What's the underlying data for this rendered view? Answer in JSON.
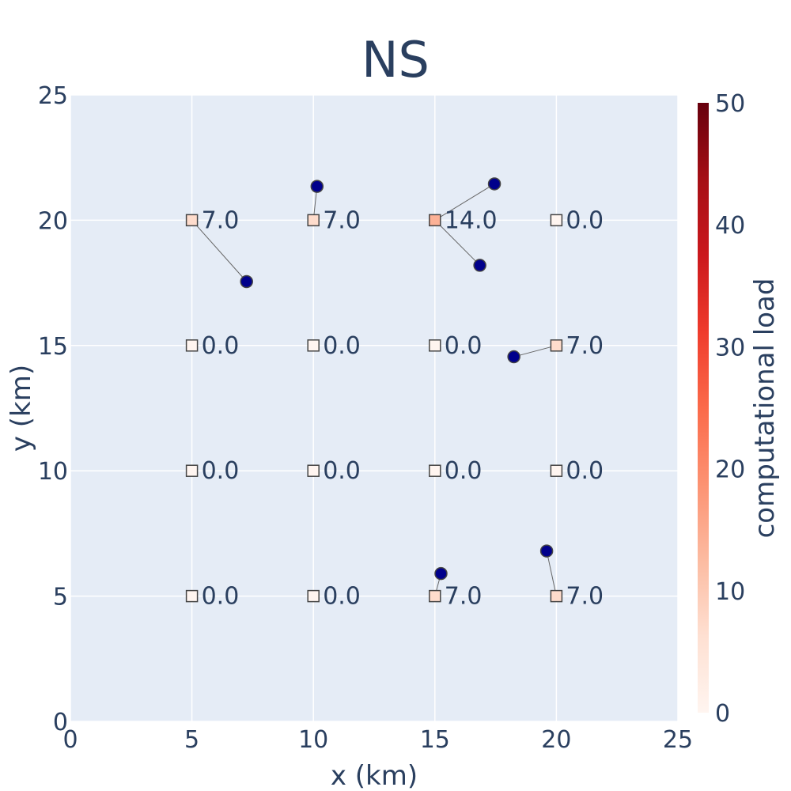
{
  "chart_data": {
    "type": "scatter",
    "title": "NS",
    "xlabel": "x (km)",
    "ylabel": "y (km)",
    "xlim": [
      0,
      25
    ],
    "ylim": [
      0,
      25
    ],
    "x_ticks": [
      "0",
      "5",
      "10",
      "15",
      "20",
      "25"
    ],
    "y_ticks": [
      "0",
      "5",
      "10",
      "15",
      "20",
      "25"
    ],
    "grid": true,
    "colorbar": {
      "label": "computational load",
      "range": [
        0,
        50
      ],
      "ticks": [
        "0",
        "10",
        "20",
        "30",
        "40",
        "50"
      ],
      "colors": [
        "#fff5f0",
        "#fee0d2",
        "#fcbba1",
        "#fc9272",
        "#fb6a4a",
        "#ef3b2c",
        "#cb181d",
        "#a50f15",
        "#67000d"
      ]
    },
    "servers": [
      {
        "x": 5,
        "y": 20,
        "load": 7.0,
        "label": "7.0"
      },
      {
        "x": 10,
        "y": 20,
        "load": 7.0,
        "label": "7.0"
      },
      {
        "x": 15,
        "y": 20,
        "load": 14.0,
        "label": "14.0"
      },
      {
        "x": 20,
        "y": 20,
        "load": 0.0,
        "label": "0.0"
      },
      {
        "x": 5,
        "y": 15,
        "load": 0.0,
        "label": "0.0"
      },
      {
        "x": 10,
        "y": 15,
        "load": 0.0,
        "label": "0.0"
      },
      {
        "x": 15,
        "y": 15,
        "load": 0.0,
        "label": "0.0"
      },
      {
        "x": 20,
        "y": 15,
        "load": 7.0,
        "label": "7.0"
      },
      {
        "x": 5,
        "y": 10,
        "load": 0.0,
        "label": "0.0"
      },
      {
        "x": 10,
        "y": 10,
        "load": 0.0,
        "label": "0.0"
      },
      {
        "x": 15,
        "y": 10,
        "load": 0.0,
        "label": "0.0"
      },
      {
        "x": 20,
        "y": 10,
        "load": 0.0,
        "label": "0.0"
      },
      {
        "x": 5,
        "y": 5,
        "load": 0.0,
        "label": "0.0"
      },
      {
        "x": 10,
        "y": 5,
        "load": 0.0,
        "label": "0.0"
      },
      {
        "x": 15,
        "y": 5,
        "load": 7.0,
        "label": "7.0"
      },
      {
        "x": 20,
        "y": 5,
        "load": 7.0,
        "label": "7.0"
      }
    ],
    "users": [
      {
        "x": 7.25,
        "y": 17.55,
        "server": [
          5,
          20
        ]
      },
      {
        "x": 10.15,
        "y": 21.35,
        "server": [
          10,
          20
        ]
      },
      {
        "x": 17.45,
        "y": 21.45,
        "server": [
          15,
          20
        ]
      },
      {
        "x": 16.85,
        "y": 18.2,
        "server": [
          15,
          20
        ]
      },
      {
        "x": 18.25,
        "y": 14.55,
        "server": [
          20,
          15
        ]
      },
      {
        "x": 15.25,
        "y": 5.9,
        "server": [
          15,
          5
        ]
      },
      {
        "x": 19.6,
        "y": 6.8,
        "server": [
          20,
          5
        ]
      }
    ],
    "user_color": "#00008b",
    "link_color": "#666666",
    "plot_bg": "#e5ecf6"
  }
}
